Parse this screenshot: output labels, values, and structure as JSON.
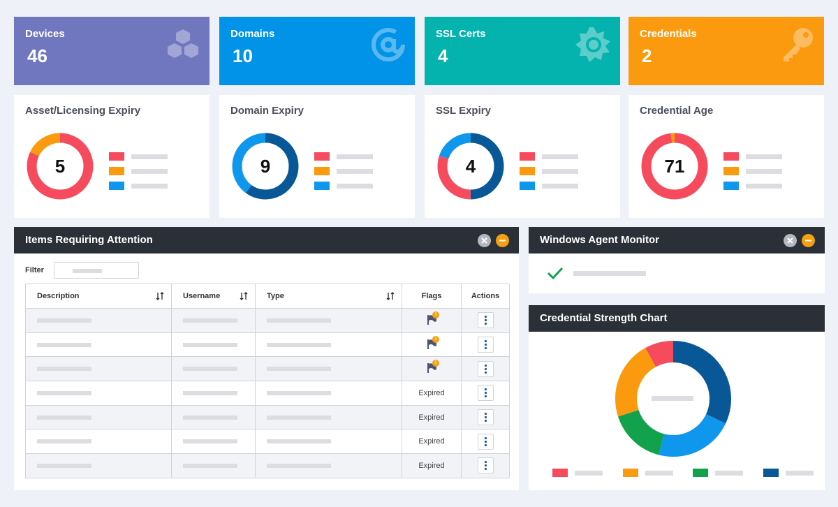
{
  "colors": {
    "red": "#f64b5c",
    "orange": "#fb9a0e",
    "blue": "#0f97ee",
    "navy": "#085796",
    "green": "#11a24b",
    "devices": "#7077be",
    "domains": "#0093e8",
    "ssl": "#05b3ae",
    "credentials": "#fb9a0e"
  },
  "stats": [
    {
      "label": "Devices",
      "value": "46",
      "icon": "cubes-icon"
    },
    {
      "label": "Domains",
      "value": "10",
      "icon": "at-sign-icon"
    },
    {
      "label": "SSL Certs",
      "value": "4",
      "icon": "sun-badge-icon"
    },
    {
      "label": "Credentials",
      "value": "2",
      "icon": "key-icon"
    }
  ],
  "expiry_cards": [
    {
      "title": "Asset/Licensing Expiry",
      "value": "5",
      "segments": [
        {
          "color": "red",
          "fraction": 0.82
        },
        {
          "color": "orange",
          "fraction": 0.18
        }
      ]
    },
    {
      "title": "Domain Expiry",
      "value": "9",
      "segments": [
        {
          "color": "navy",
          "fraction": 0.6
        },
        {
          "color": "blue",
          "fraction": 0.4
        }
      ]
    },
    {
      "title": "SSL Expiry",
      "value": "4",
      "segments": [
        {
          "color": "navy",
          "fraction": 0.5
        },
        {
          "color": "red",
          "fraction": 0.3
        },
        {
          "color": "blue",
          "fraction": 0.2
        }
      ]
    },
    {
      "title": "Credential Age",
      "value": "71",
      "segments": [
        {
          "color": "red",
          "fraction": 0.98
        },
        {
          "color": "orange",
          "fraction": 0.02
        }
      ]
    }
  ],
  "attention": {
    "title": "Items Requiring Attention",
    "filter_label": "Filter",
    "columns": {
      "description": "Description",
      "username": "Username",
      "type": "Type",
      "flags": "Flags",
      "actions": "Actions"
    },
    "rows": [
      {
        "flag": "flag",
        "badge": "!"
      },
      {
        "flag": "flag",
        "badge": "!"
      },
      {
        "flag": "flag",
        "badge": "!"
      },
      {
        "flag": "Expired"
      },
      {
        "flag": "Expired"
      },
      {
        "flag": "Expired"
      },
      {
        "flag": "Expired"
      }
    ]
  },
  "agent_monitor": {
    "title": "Windows Agent Monitor"
  },
  "strength_chart": {
    "title": "Credential Strength Chart",
    "chart_data": {
      "type": "pie",
      "donut": true,
      "slices": [
        {
          "color": "navy",
          "fraction": 0.32
        },
        {
          "color": "blue",
          "fraction": 0.22
        },
        {
          "color": "green",
          "fraction": 0.16
        },
        {
          "color": "orange",
          "fraction": 0.22
        },
        {
          "color": "red",
          "fraction": 0.08
        }
      ],
      "legend_colors": [
        "red",
        "orange",
        "green",
        "navy"
      ],
      "legend_placement": "bottom"
    }
  }
}
